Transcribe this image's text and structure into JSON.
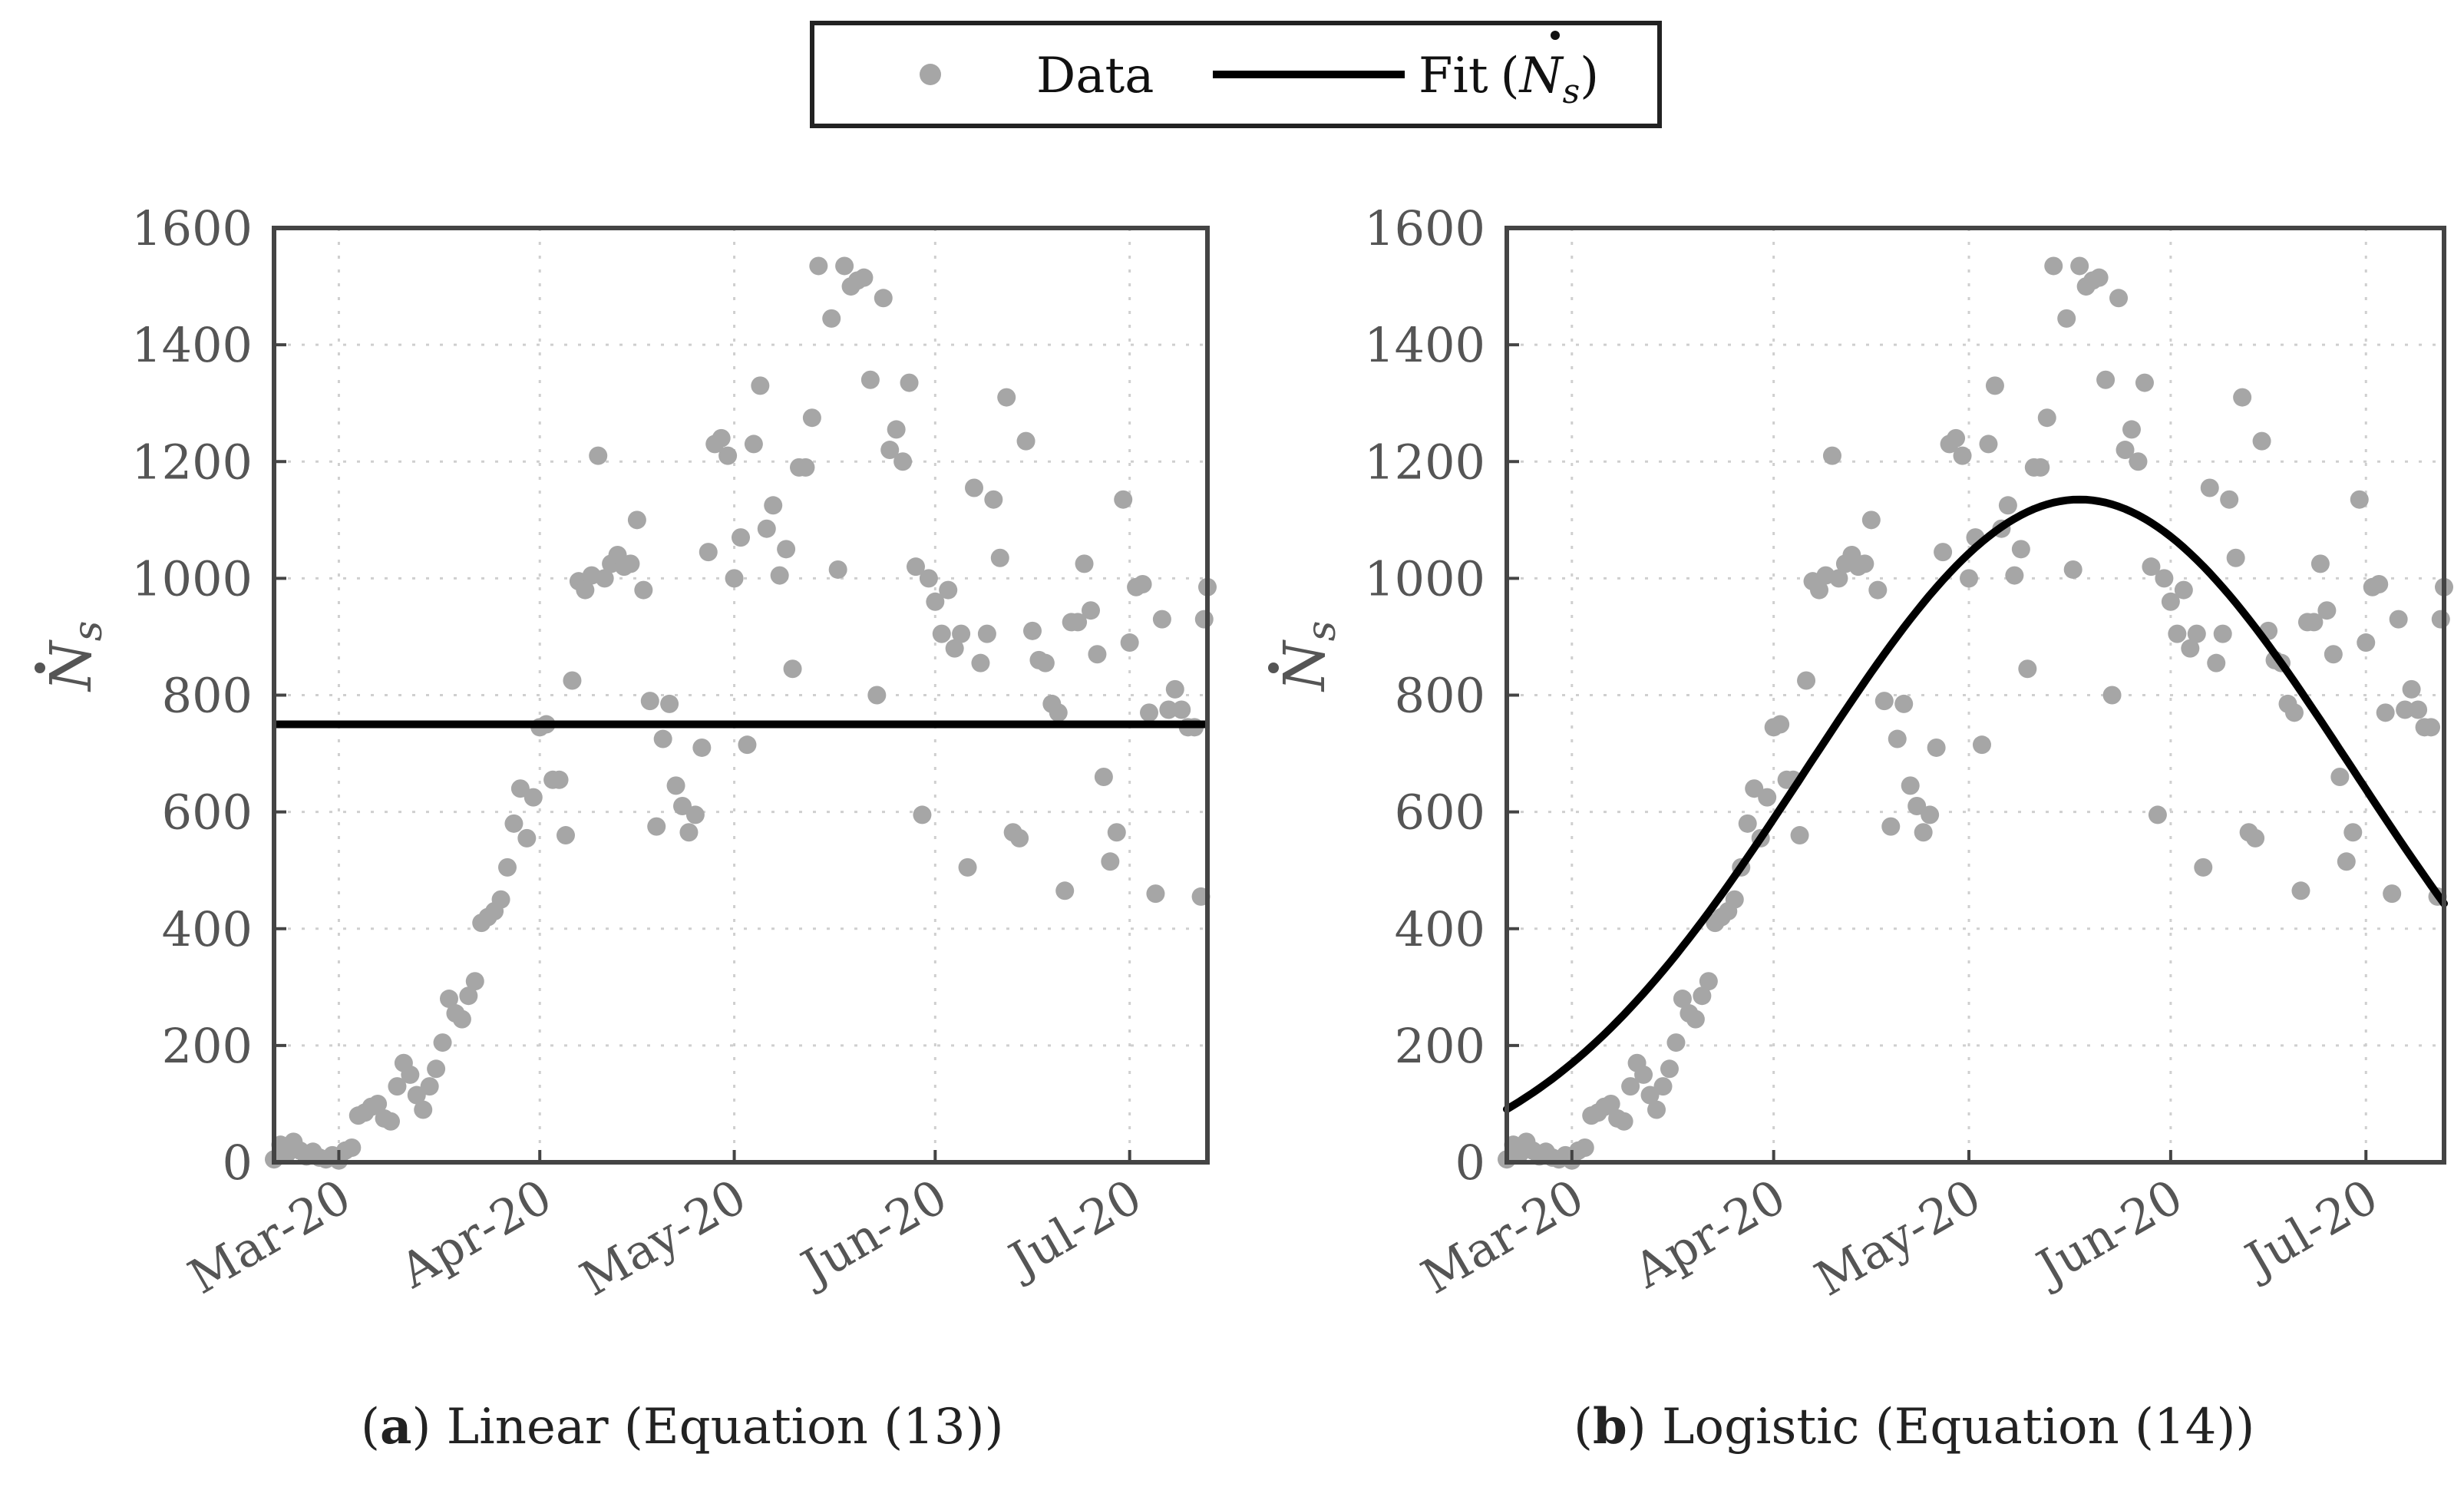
{
  "legend": {
    "data_label": "Data",
    "fit_label": "Fit",
    "fit_symbol": "N",
    "fit_subscript": "s"
  },
  "y_axis_label": {
    "symbol": "N",
    "subscript": "s"
  },
  "colors": {
    "data": "#a6a6a6",
    "fit": "#000000",
    "frame": "#444444"
  },
  "chart_data": [
    {
      "type": "scatter",
      "id": "a",
      "caption_letter": "a",
      "caption_text": " Linear (Equation (13))",
      "ylim": [
        0,
        1600
      ],
      "yticks": [
        0,
        200,
        400,
        600,
        800,
        1000,
        1200,
        1400,
        1600
      ],
      "xlim": [
        0,
        144
      ],
      "xticks": [
        {
          "label": "Mar-20",
          "value": 10
        },
        {
          "label": "Apr-20",
          "value": 41
        },
        {
          "label": "May-20",
          "value": 71
        },
        {
          "label": "Jun-20",
          "value": 102
        },
        {
          "label": "Jul-20",
          "value": 132
        }
      ],
      "fit": {
        "name": "Fit (Ṅs)",
        "kind": "linear",
        "value": 750
      }
    },
    {
      "type": "scatter",
      "id": "b",
      "caption_letter": "b",
      "caption_text": " Logistic (Equation (14))",
      "ylim": [
        0,
        1600
      ],
      "yticks": [
        0,
        200,
        400,
        600,
        800,
        1000,
        1200,
        1400,
        1600
      ],
      "xlim": [
        0,
        144
      ],
      "xticks": [
        {
          "label": "Mar-20",
          "value": 10
        },
        {
          "label": "Apr-20",
          "value": 41
        },
        {
          "label": "May-20",
          "value": 71
        },
        {
          "label": "Jun-20",
          "value": 102
        },
        {
          "label": "Jul-20",
          "value": 132
        }
      ],
      "fit": {
        "name": "Fit (Ṅs)",
        "kind": "logistic",
        "peak": 1175,
        "peak_day": 88,
        "sigma": 42
      }
    }
  ],
  "series": [
    {
      "x": 0,
      "y": 5
    },
    {
      "x": 1,
      "y": 30
    },
    {
      "x": 2,
      "y": 15
    },
    {
      "x": 3,
      "y": 35
    },
    {
      "x": 4,
      "y": 20
    },
    {
      "x": 5,
      "y": 10
    },
    {
      "x": 6,
      "y": 18
    },
    {
      "x": 7,
      "y": 8
    },
    {
      "x": 8,
      "y": 5
    },
    {
      "x": 9,
      "y": 12
    },
    {
      "x": 10,
      "y": 3
    },
    {
      "x": 11,
      "y": 20
    },
    {
      "x": 12,
      "y": 25
    },
    {
      "x": 13,
      "y": 80
    },
    {
      "x": 14,
      "y": 85
    },
    {
      "x": 15,
      "y": 95
    },
    {
      "x": 16,
      "y": 100
    },
    {
      "x": 17,
      "y": 75
    },
    {
      "x": 18,
      "y": 70
    },
    {
      "x": 19,
      "y": 130
    },
    {
      "x": 20,
      "y": 170
    },
    {
      "x": 21,
      "y": 150
    },
    {
      "x": 22,
      "y": 115
    },
    {
      "x": 23,
      "y": 90
    },
    {
      "x": 24,
      "y": 130
    },
    {
      "x": 25,
      "y": 160
    },
    {
      "x": 26,
      "y": 205
    },
    {
      "x": 27,
      "y": 280
    },
    {
      "x": 28,
      "y": 255
    },
    {
      "x": 29,
      "y": 245
    },
    {
      "x": 30,
      "y": 285
    },
    {
      "x": 31,
      "y": 310
    },
    {
      "x": 32,
      "y": 410
    },
    {
      "x": 33,
      "y": 420
    },
    {
      "x": 34,
      "y": 430
    },
    {
      "x": 35,
      "y": 450
    },
    {
      "x": 36,
      "y": 505
    },
    {
      "x": 37,
      "y": 580
    },
    {
      "x": 38,
      "y": 640
    },
    {
      "x": 39,
      "y": 555
    },
    {
      "x": 40,
      "y": 625
    },
    {
      "x": 41,
      "y": 745
    },
    {
      "x": 42,
      "y": 750
    },
    {
      "x": 43,
      "y": 655
    },
    {
      "x": 44,
      "y": 655
    },
    {
      "x": 45,
      "y": 560
    },
    {
      "x": 46,
      "y": 825
    },
    {
      "x": 47,
      "y": 995
    },
    {
      "x": 48,
      "y": 980
    },
    {
      "x": 49,
      "y": 1005
    },
    {
      "x": 50,
      "y": 1210
    },
    {
      "x": 51,
      "y": 1000
    },
    {
      "x": 52,
      "y": 1025
    },
    {
      "x": 53,
      "y": 1040
    },
    {
      "x": 54,
      "y": 1020
    },
    {
      "x": 55,
      "y": 1025
    },
    {
      "x": 56,
      "y": 1100
    },
    {
      "x": 57,
      "y": 980
    },
    {
      "x": 58,
      "y": 790
    },
    {
      "x": 59,
      "y": 575
    },
    {
      "x": 60,
      "y": 725
    },
    {
      "x": 61,
      "y": 785
    },
    {
      "x": 62,
      "y": 645
    },
    {
      "x": 63,
      "y": 610
    },
    {
      "x": 64,
      "y": 565
    },
    {
      "x": 65,
      "y": 595
    },
    {
      "x": 66,
      "y": 710
    },
    {
      "x": 67,
      "y": 1045
    },
    {
      "x": 68,
      "y": 1230
    },
    {
      "x": 69,
      "y": 1240
    },
    {
      "x": 70,
      "y": 1210
    },
    {
      "x": 71,
      "y": 1000
    },
    {
      "x": 72,
      "y": 1070
    },
    {
      "x": 73,
      "y": 715
    },
    {
      "x": 74,
      "y": 1230
    },
    {
      "x": 75,
      "y": 1330
    },
    {
      "x": 76,
      "y": 1085
    },
    {
      "x": 77,
      "y": 1125
    },
    {
      "x": 78,
      "y": 1005
    },
    {
      "x": 79,
      "y": 1050
    },
    {
      "x": 80,
      "y": 845
    },
    {
      "x": 81,
      "y": 1190
    },
    {
      "x": 82,
      "y": 1190
    },
    {
      "x": 83,
      "y": 1275
    },
    {
      "x": 84,
      "y": 1535
    },
    {
      "x": 86,
      "y": 1445
    },
    {
      "x": 87,
      "y": 1015
    },
    {
      "x": 88,
      "y": 1535
    },
    {
      "x": 89,
      "y": 1500
    },
    {
      "x": 90,
      "y": 1510
    },
    {
      "x": 91,
      "y": 1515
    },
    {
      "x": 92,
      "y": 1340
    },
    {
      "x": 93,
      "y": 800
    },
    {
      "x": 94,
      "y": 1480
    },
    {
      "x": 95,
      "y": 1220
    },
    {
      "x": 96,
      "y": 1255
    },
    {
      "x": 97,
      "y": 1200
    },
    {
      "x": 98,
      "y": 1335
    },
    {
      "x": 99,
      "y": 1020
    },
    {
      "x": 100,
      "y": 595
    },
    {
      "x": 101,
      "y": 1000
    },
    {
      "x": 102,
      "y": 960
    },
    {
      "x": 103,
      "y": 905
    },
    {
      "x": 104,
      "y": 980
    },
    {
      "x": 105,
      "y": 880
    },
    {
      "x": 106,
      "y": 905
    },
    {
      "x": 107,
      "y": 505
    },
    {
      "x": 108,
      "y": 1155
    },
    {
      "x": 109,
      "y": 855
    },
    {
      "x": 110,
      "y": 905
    },
    {
      "x": 111,
      "y": 1135
    },
    {
      "x": 112,
      "y": 1035
    },
    {
      "x": 113,
      "y": 1310
    },
    {
      "x": 114,
      "y": 565
    },
    {
      "x": 115,
      "y": 555
    },
    {
      "x": 116,
      "y": 1235
    },
    {
      "x": 117,
      "y": 910
    },
    {
      "x": 118,
      "y": 860
    },
    {
      "x": 119,
      "y": 855
    },
    {
      "x": 120,
      "y": 785
    },
    {
      "x": 121,
      "y": 770
    },
    {
      "x": 122,
      "y": 465
    },
    {
      "x": 123,
      "y": 925
    },
    {
      "x": 124,
      "y": 925
    },
    {
      "x": 125,
      "y": 1025
    },
    {
      "x": 126,
      "y": 945
    },
    {
      "x": 127,
      "y": 870
    },
    {
      "x": 128,
      "y": 660
    },
    {
      "x": 129,
      "y": 515
    },
    {
      "x": 130,
      "y": 565
    },
    {
      "x": 131,
      "y": 1135
    },
    {
      "x": 132,
      "y": 890
    },
    {
      "x": 133,
      "y": 985
    },
    {
      "x": 134,
      "y": 990
    },
    {
      "x": 135,
      "y": 770
    },
    {
      "x": 136,
      "y": 460
    },
    {
      "x": 137,
      "y": 930
    },
    {
      "x": 138,
      "y": 775
    },
    {
      "x": 139,
      "y": 810
    },
    {
      "x": 140,
      "y": 775
    },
    {
      "x": 141,
      "y": 745
    },
    {
      "x": 142,
      "y": 745
    },
    {
      "x": 143,
      "y": 455
    },
    {
      "x": 143.5,
      "y": 930
    },
    {
      "x": 144,
      "y": 985
    }
  ]
}
